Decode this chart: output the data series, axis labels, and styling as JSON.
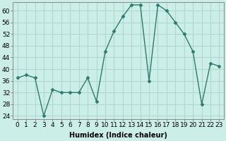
{
  "x": [
    0,
    1,
    2,
    3,
    4,
    5,
    6,
    7,
    8,
    9,
    10,
    11,
    12,
    13,
    14,
    15,
    16,
    17,
    18,
    19,
    20,
    21,
    22,
    23
  ],
  "y": [
    37,
    38,
    37,
    24,
    33,
    32,
    32,
    32,
    37,
    29,
    46,
    53,
    58,
    62,
    62,
    36,
    62,
    60,
    56,
    52,
    46,
    28,
    42,
    41
  ],
  "line_color": "#2d7a6e",
  "marker_color": "#2d7a6e",
  "bg_color": "#cceee8",
  "grid_color": "#b0d8d0",
  "xlabel": "Humidex (Indice chaleur)",
  "ylim": [
    23,
    63
  ],
  "xlim": [
    -0.5,
    23.5
  ],
  "yticks": [
    24,
    28,
    32,
    36,
    40,
    44,
    48,
    52,
    56,
    60
  ],
  "tick_fontsize": 6.5,
  "label_fontsize": 7.0
}
